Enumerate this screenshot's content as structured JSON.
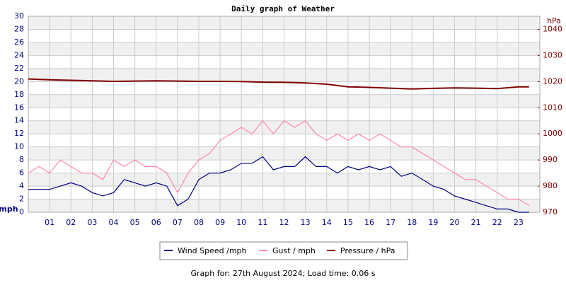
{
  "chart_data": {
    "type": "line",
    "title": "Daily graph of Weather",
    "y_label": "mph",
    "y2_label": "hPa",
    "footer": "Graph for: 27th August 2024; Load time: 0.06 s",
    "xlim": [
      0,
      24
    ],
    "xticks": [
      {
        "value": 1,
        "label": "01"
      },
      {
        "value": 2,
        "label": "02"
      },
      {
        "value": 3,
        "label": "03"
      },
      {
        "value": 4,
        "label": "04"
      },
      {
        "value": 5,
        "label": "05"
      },
      {
        "value": 6,
        "label": "06"
      },
      {
        "value": 7,
        "label": "07"
      },
      {
        "value": 8,
        "label": "08"
      },
      {
        "value": 9,
        "label": "09"
      },
      {
        "value": 10,
        "label": "10"
      },
      {
        "value": 11,
        "label": "11"
      },
      {
        "value": 12,
        "label": "12"
      },
      {
        "value": 13,
        "label": "13"
      },
      {
        "value": 14,
        "label": "14"
      },
      {
        "value": 15,
        "label": "15"
      },
      {
        "value": 16,
        "label": "16"
      },
      {
        "value": 17,
        "label": "17"
      },
      {
        "value": 18,
        "label": "18"
      },
      {
        "value": 19,
        "label": "19"
      },
      {
        "value": 20,
        "label": "20"
      },
      {
        "value": 21,
        "label": "21"
      },
      {
        "value": 22,
        "label": "22"
      },
      {
        "value": 23,
        "label": "23"
      }
    ],
    "ylim": [
      0,
      30
    ],
    "yticks": [
      0,
      2,
      4,
      6,
      8,
      10,
      12,
      14,
      16,
      18,
      20,
      22,
      24,
      26,
      28,
      30
    ],
    "y2lim": [
      970,
      1045
    ],
    "y2ticks": [
      970,
      980,
      990,
      1000,
      1010,
      1020,
      1030,
      1040
    ],
    "grid": true,
    "series": [
      {
        "name": "Wind Speed /mph",
        "color": "#000080",
        "x": [
          0,
          0.5,
          1,
          1.5,
          2,
          2.5,
          3,
          3.5,
          4,
          4.5,
          5,
          5.5,
          6,
          6.5,
          7,
          7.5,
          8,
          8.5,
          9,
          9.5,
          10,
          10.5,
          11,
          11.5,
          12,
          12.5,
          13,
          13.5,
          14,
          14.5,
          15,
          15.5,
          16,
          16.5,
          17,
          17.5,
          18,
          18.5,
          19,
          19.5,
          20,
          20.5,
          21,
          21.5,
          22,
          22.5,
          23,
          23.5
        ],
        "values": [
          3.5,
          3.5,
          3.5,
          4,
          4.5,
          4,
          3,
          2.5,
          3,
          5,
          4.5,
          4,
          4.5,
          4,
          1,
          2,
          5,
          6,
          6,
          6.5,
          7.5,
          7.5,
          8.5,
          6.5,
          7,
          7,
          8.5,
          7,
          7,
          6,
          7,
          6.5,
          7,
          6.5,
          7,
          5.5,
          6,
          5,
          4,
          3.5,
          2.5,
          2,
          1.5,
          1,
          0.5,
          0.5,
          0,
          0
        ]
      },
      {
        "name": "Gust / mph",
        "color": "#ff88aa",
        "x": [
          0,
          0.5,
          1,
          1.5,
          2,
          2.5,
          3,
          3.5,
          4,
          4.5,
          5,
          5.5,
          6,
          6.5,
          7,
          7.5,
          8,
          8.5,
          9,
          9.5,
          10,
          10.5,
          11,
          11.5,
          12,
          12.5,
          13,
          13.5,
          14,
          14.5,
          15,
          15.5,
          16,
          16.5,
          17,
          17.5,
          18,
          18.5,
          19,
          19.5,
          20,
          20.5,
          21,
          21.5,
          22,
          22.5,
          23,
          23.5
        ],
        "values": [
          6,
          7,
          6,
          8,
          7,
          6,
          6,
          5,
          8,
          7,
          8,
          7,
          7,
          6,
          3,
          6,
          8,
          9,
          11,
          12,
          13,
          12,
          14,
          12,
          14,
          13,
          14,
          12,
          11,
          12,
          11,
          12,
          11,
          12,
          11,
          10,
          10,
          9,
          8,
          7,
          6,
          5,
          5,
          4,
          3,
          2,
          2,
          1
        ]
      },
      {
        "name": "Pressure / hPa",
        "color": "#800000",
        "axis": "y2",
        "x": [
          0,
          1,
          2,
          3,
          4,
          5,
          6,
          7,
          8,
          9,
          10,
          11,
          12,
          13,
          14,
          15,
          16,
          17,
          18,
          19,
          20,
          21,
          22,
          23,
          23.5
        ],
        "values": [
          1021,
          1020.7,
          1020.5,
          1020.3,
          1020.1,
          1020.2,
          1020.3,
          1020.2,
          1020.1,
          1020.1,
          1020,
          1019.8,
          1019.7,
          1019.5,
          1019,
          1018,
          1017.8,
          1017.5,
          1017.2,
          1017.4,
          1017.6,
          1017.5,
          1017.3,
          1018,
          1018
        ]
      }
    ]
  }
}
